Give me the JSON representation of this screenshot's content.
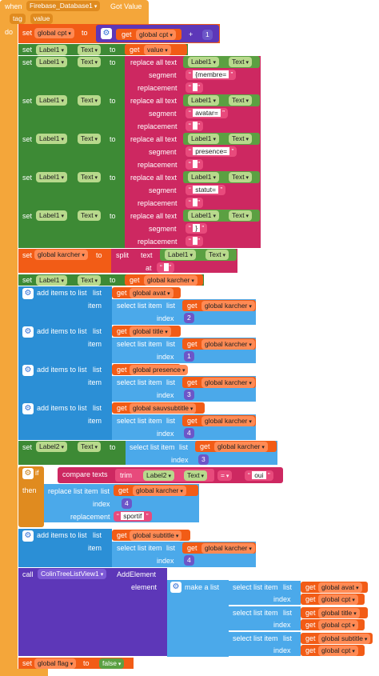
{
  "event": {
    "when": "when",
    "component": "Firebase_Database1",
    "event_name": "Got Value",
    "param_tag": "tag",
    "param_value": "value",
    "do": "do"
  },
  "kw": {
    "set": "set",
    "to": "to",
    "get": "get",
    "plus": "+",
    "replace_all_text": "replace all text",
    "segment": "segment",
    "replacement": "replacement",
    "split": "split",
    "text": "text",
    "at": "at",
    "add_items": "add items to list",
    "list": "list",
    "item": "item",
    "select_list_item": "select list item",
    "index": "index",
    "if": "if",
    "then": "then",
    "compare_texts": "compare texts",
    "trim": "trim",
    "eq": "=",
    "replace_list_item": "replace list item",
    "call": "call",
    "make_a_list": "make a list",
    "element": "element",
    "false": "false"
  },
  "vars": {
    "cpt": "global cpt",
    "karcher": "global karcher",
    "avat": "global avat",
    "title": "global title",
    "presence": "global presence",
    "sauvsubtitle": "global sauvsubtitle",
    "subtitle": "global subtitle",
    "flag": "global flag",
    "value": "value"
  },
  "comp": {
    "label1": "Label1",
    "label2": "Label2",
    "prop_text": "Text",
    "tree": "ColinTreeListView1",
    "add_element": "AddElement"
  },
  "strings": {
    "membre": "{membre=",
    "avatar": "avatar=",
    "presence": "presence=",
    "statut": "statut=",
    "close_brace": "}",
    "empty": " ",
    "oui": "oui",
    "sportif": "sportif"
  },
  "nums": {
    "one": "1",
    "two": "2",
    "three": "3",
    "four": "4"
  }
}
